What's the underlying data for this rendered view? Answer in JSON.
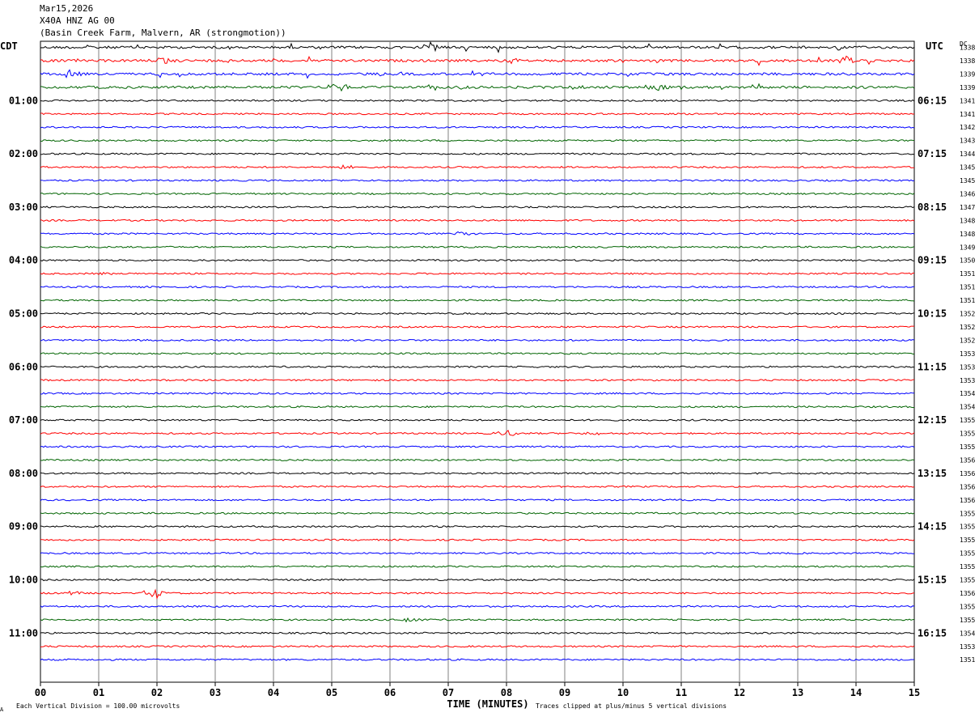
{
  "header": {
    "date": "Mar15,2026",
    "station": "X40A HNZ AG 00",
    "location": "(Basin Creek Farm, Malvern, AR (strongmotion))"
  },
  "axes": {
    "left_label": "CDT",
    "right_label": "UTC",
    "dc_label": "DC",
    "xlabel": "TIME (MINUTES)"
  },
  "footer": {
    "scale_note": "Each Vertical Division =  100.00 microvolts",
    "clip_note": "Traces clipped at plus/minus 5 vertical divisions",
    "corner_mark": "A"
  },
  "chart_data": {
    "type": "line",
    "title": "X40A HNZ AG 00",
    "xlabel": "TIME (MINUTES)",
    "xlim": [
      0,
      15
    ],
    "x_ticks": [
      "00",
      "01",
      "02",
      "03",
      "04",
      "05",
      "06",
      "07",
      "08",
      "09",
      "10",
      "11",
      "12",
      "13",
      "14",
      "15"
    ],
    "rows_per_hour": 4,
    "minutes_per_row": 15,
    "left_hour_labels": [
      "01:00",
      "02:00",
      "03:00",
      "04:00",
      "05:00",
      "06:00",
      "07:00",
      "08:00",
      "09:00",
      "10:00",
      "11:00"
    ],
    "right_hour_labels": [
      "06:15",
      "07:15",
      "08:15",
      "09:15",
      "10:15",
      "11:15",
      "12:15",
      "13:15",
      "14:15",
      "15:15",
      "16:15"
    ],
    "trace_colors": [
      "#000000",
      "#ff0000",
      "#0000ff",
      "#006400"
    ],
    "dc_offsets": [
      "1338",
      "1338",
      "1339",
      "1339",
      "1341",
      "1341",
      "1342",
      "1343",
      "1344",
      "1345",
      "1345",
      "1346",
      "1347",
      "1348",
      "1348",
      "1349",
      "1350",
      "1351",
      "1351",
      "1351",
      "1352",
      "1352",
      "1352",
      "1353",
      "1353",
      "1353",
      "1354",
      "1354",
      "1355",
      "1355",
      "1355",
      "1356",
      "1356",
      "1356",
      "1356",
      "1355",
      "1355",
      "1355",
      "1355",
      "1355",
      "1355",
      "1356",
      "1355",
      "1355",
      "1354",
      "1353",
      "1351"
    ],
    "events": [
      {
        "row": 0,
        "minute": 6.7,
        "amp": 5
      },
      {
        "row": 1,
        "minute": 2.1,
        "amp": 4
      },
      {
        "row": 1,
        "minute": 8.1,
        "amp": 6
      },
      {
        "row": 1,
        "minute": 13.85,
        "amp": 6
      },
      {
        "row": 2,
        "minute": 0.5,
        "amp": 5
      },
      {
        "row": 3,
        "minute": 5.1,
        "amp": 7
      },
      {
        "row": 3,
        "minute": 10.6,
        "amp": 4
      },
      {
        "row": 9,
        "minute": 5.2,
        "amp": 3
      },
      {
        "row": 14,
        "minute": 7.3,
        "amp": 3
      },
      {
        "row": 17,
        "minute": 1.1,
        "amp": 2
      },
      {
        "row": 29,
        "minute": 8.0,
        "amp": 5
      },
      {
        "row": 29,
        "minute": 9.5,
        "amp": 3
      },
      {
        "row": 41,
        "minute": 0.6,
        "amp": 3
      },
      {
        "row": 41,
        "minute": 1.95,
        "amp": 7
      },
      {
        "row": 43,
        "minute": 6.35,
        "amp": 5
      }
    ]
  }
}
